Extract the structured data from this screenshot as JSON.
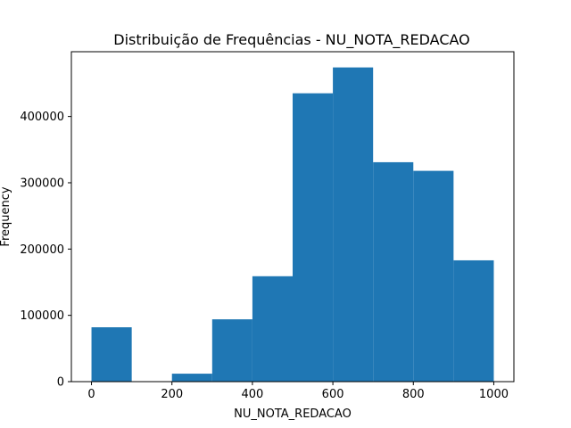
{
  "chart_data": {
    "type": "bar",
    "title": "Distribuição de Frequências - NU_NOTA_REDACAO",
    "xlabel": "NU_NOTA_REDACAO",
    "ylabel": "Frequency",
    "bins": [
      {
        "x0": 0,
        "x1": 100,
        "count": 82000
      },
      {
        "x0": 100,
        "x1": 200,
        "count": 0
      },
      {
        "x0": 200,
        "x1": 300,
        "count": 12000
      },
      {
        "x0": 300,
        "x1": 400,
        "count": 94000
      },
      {
        "x0": 400,
        "x1": 500,
        "count": 159000
      },
      {
        "x0": 500,
        "x1": 600,
        "count": 435000
      },
      {
        "x0": 600,
        "x1": 700,
        "count": 474000
      },
      {
        "x0": 700,
        "x1": 800,
        "count": 331000
      },
      {
        "x0": 800,
        "x1": 900,
        "count": 318000
      },
      {
        "x0": 900,
        "x1": 1000,
        "count": 183000
      }
    ],
    "xlim": [
      -50,
      1050
    ],
    "ylim": [
      0,
      497700
    ],
    "xticks": [
      0,
      200,
      400,
      600,
      800,
      1000
    ],
    "yticks": [
      0,
      100000,
      200000,
      300000,
      400000
    ],
    "bar_color": "#1f77b4",
    "grid": false
  }
}
